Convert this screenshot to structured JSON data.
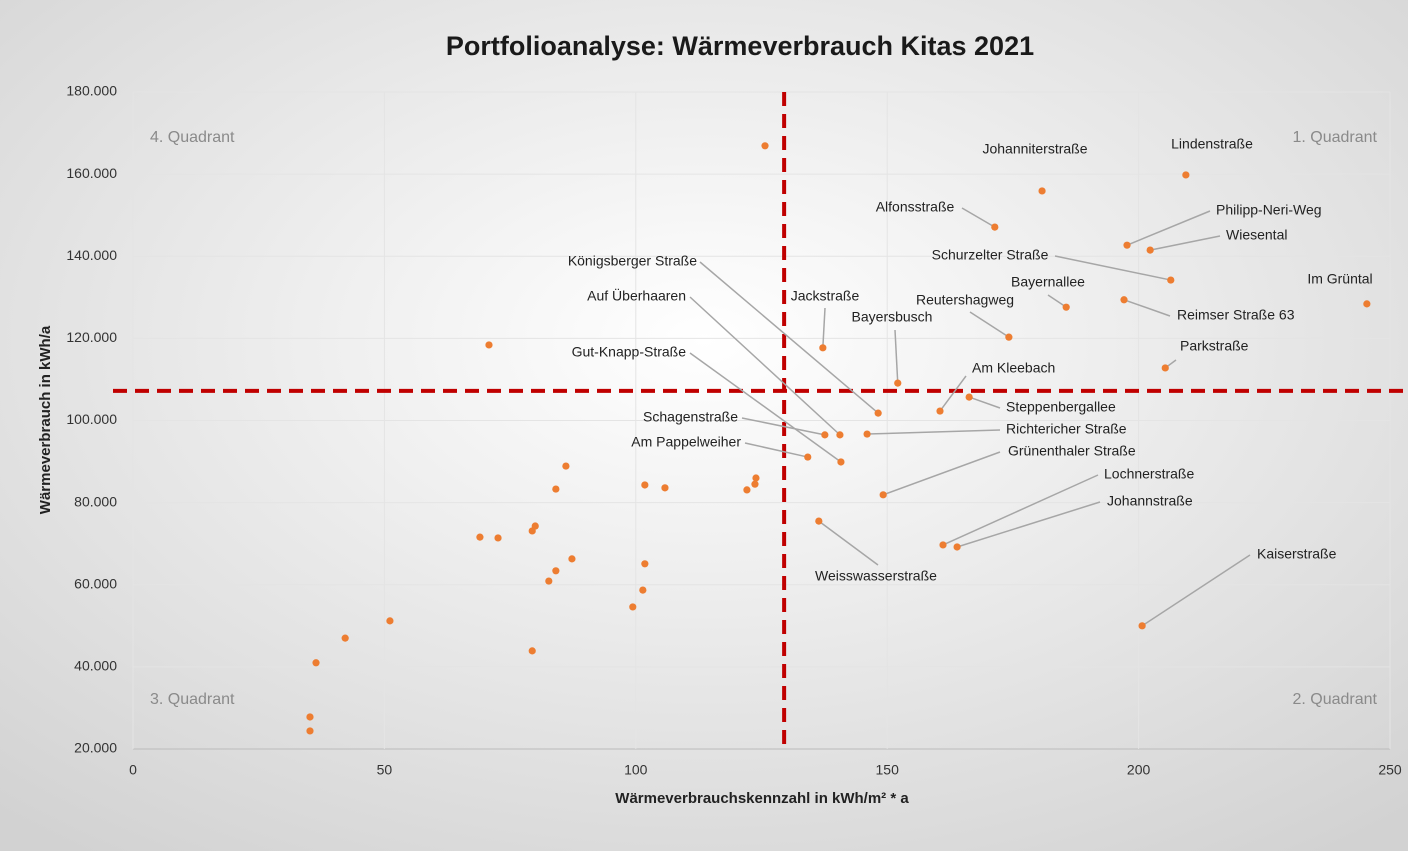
{
  "chart_data": {
    "type": "scatter",
    "title": "Portfolioanalyse: Wärmeverbrauch Kitas 2021",
    "xlabel": "Wärmeverbrauchskennzahl in kWh/m² * a",
    "ylabel": "Wärmeverbrauch in kWh/a",
    "color": "#ed7d31",
    "x": [
      209.4,
      180.8,
      171.4,
      197.7,
      202.3,
      206.4,
      245.4,
      185.6,
      197.1,
      174.2,
      137.2,
      152.1,
      205.3,
      148.2,
      140.6,
      160.5,
      166.3,
      140.8,
      137.6,
      146.0,
      134.2,
      149.2,
      161.1,
      163.9,
      136.4,
      200.7,
      125.7,
      70.8,
      86.1,
      84.1,
      101.8,
      105.8,
      123.7,
      123.9,
      122.1,
      69.0,
      72.6,
      80.0,
      79.4,
      87.3,
      101.8,
      84.1,
      82.7,
      101.4,
      99.4,
      51.1,
      42.2,
      79.4,
      36.4,
      35.2,
      35.2
    ],
    "values": [
      159800,
      155900,
      147100,
      142700,
      141500,
      134200,
      128400,
      127600,
      129400,
      120300,
      117700,
      109100,
      112800,
      101800,
      96500,
      102300,
      105700,
      89900,
      96500,
      96700,
      91100,
      81900,
      69700,
      69200,
      75500,
      50000,
      166900,
      118400,
      88900,
      83300,
      84300,
      83600,
      84500,
      86000,
      83100,
      71600,
      71400,
      74300,
      73100,
      66300,
      65100,
      63400,
      60900,
      58700,
      54600,
      51200,
      47000,
      43900,
      41000,
      27800,
      24400
    ],
    "point_labels": [
      "Lindenstraße",
      "Johanniterstraße",
      "Alfonsstraße",
      "Philipp-Neri-Weg",
      "Wiesental",
      "Schurzelter Straße",
      "Im Grüntal",
      "Bayernallee",
      "Reimser Straße 63",
      "Reutershagweg",
      "Jackstraße",
      "Bayersbusch",
      "Parkstraße",
      "Königsberger Straße",
      "Auf Überhaaren",
      "Am Kleebach",
      "Steppenbergallee",
      "Gut-Knapp-Straße",
      "Schagenstraße",
      "Richtericher Straße",
      "Am Pappelweiher",
      "Grünenthaler Straße",
      "Lochnerstraße",
      "Johannstraße",
      "Weisswasserstraße",
      "Kaiserstraße",
      null,
      null,
      null,
      null,
      null,
      null,
      null,
      null,
      null,
      null,
      null,
      null,
      null,
      null,
      null,
      null,
      null,
      null,
      null,
      null,
      null,
      null,
      null,
      null,
      null
    ],
    "xlim": [
      0,
      250
    ],
    "xticks": [
      0,
      50,
      100,
      150,
      200,
      250
    ],
    "ylim": [
      20000,
      180000
    ],
    "yticks": [
      {
        "value": 20000,
        "label": "20.000"
      },
      {
        "value": 40000,
        "label": "40.000"
      },
      {
        "value": 60000,
        "label": "60.000"
      },
      {
        "value": 80000,
        "label": "80.000"
      },
      {
        "value": 100000,
        "label": "100.000"
      },
      {
        "value": 120000,
        "label": "120.000"
      },
      {
        "value": 140000,
        "label": "140.000"
      },
      {
        "value": 160000,
        "label": "160.000"
      },
      {
        "value": 180000,
        "label": "180.000"
      }
    ],
    "grid": true,
    "reference_lines": {
      "x": 129.5,
      "y": 107200,
      "color": "#c00000"
    },
    "quadrant_labels": [
      "1. Quadrant",
      "2. Quadrant",
      "3. Quadrant",
      "4. Quadrant"
    ]
  }
}
